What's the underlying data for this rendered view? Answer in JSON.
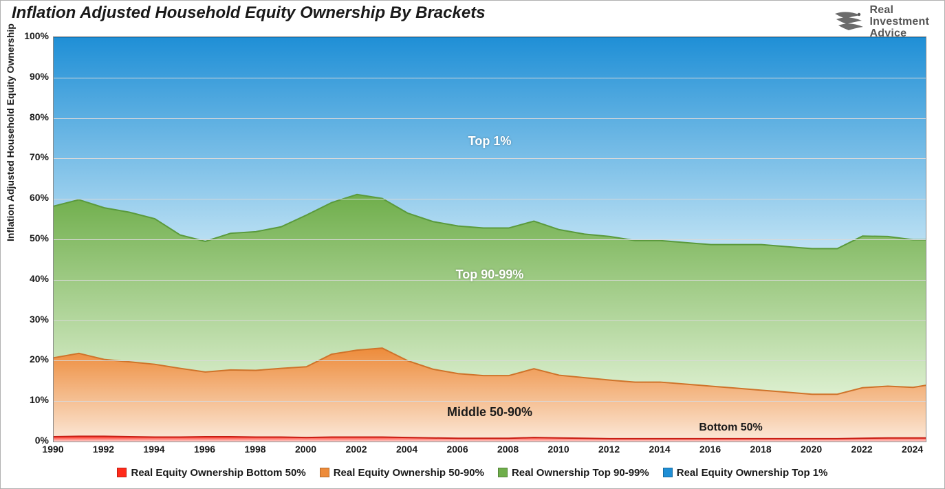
{
  "title": "Inflation Adjusted Household Equity Ownership By Brackets",
  "brand": {
    "line1": "Real",
    "line2": "Investment",
    "line3": "Advice"
  },
  "chart": {
    "type": "stacked-area-100",
    "ylabel": "Inflation Adjusted Household Equity Ownership",
    "ylim": [
      0,
      100
    ],
    "ytick_step": 10,
    "ytick_suffix": "%",
    "xlim": [
      1990,
      2024.5
    ],
    "xticks": [
      1990,
      1992,
      1994,
      1996,
      1998,
      2000,
      2002,
      2004,
      2006,
      2008,
      2010,
      2012,
      2014,
      2016,
      2018,
      2020,
      2022,
      2024
    ],
    "background_color": "#ffffff",
    "grid_color": "#d9d9d9",
    "border_color": "#888888",
    "series_order_bottom_to_top": [
      "bottom50",
      "mid50_90",
      "top90_99",
      "top1"
    ],
    "colors": {
      "bottom50_fill_top": "#ff2a1a",
      "bottom50_fill_bot": "#ffd6d2",
      "bottom50_line": "#c81e14",
      "mid_fill_top": "#ed8b3a",
      "mid_fill_bot": "#fbe6d5",
      "mid_line": "#cf732a",
      "top9099_fill_top": "#6fae4b",
      "top9099_fill_bot": "#dcefcf",
      "top9099_line": "#5a9a3c",
      "top1_fill_top": "#1f8fd6",
      "top1_fill_bot": "#bfe2f4",
      "top1_line": "#1678b8"
    },
    "region_labels": {
      "top1": "Top 1%",
      "top90_99": "Top 90-99%",
      "mid": "Middle 50-90%",
      "bottom": "Bottom 50%"
    },
    "legend": [
      {
        "swatch": "#ff2a1a",
        "label": "Real Equity Ownership Bottom 50%"
      },
      {
        "swatch": "#ed8b3a",
        "label": "Real Equity Ownership 50-90%"
      },
      {
        "swatch": "#6fae4b",
        "label": "Real Ownership Top 90-99%"
      },
      {
        "swatch": "#1f8fd6",
        "label": "Real Equity Ownership Top 1%"
      }
    ],
    "x": [
      1990,
      1991,
      1992,
      1993,
      1994,
      1995,
      1996,
      1997,
      1998,
      1999,
      2000,
      2001,
      2002,
      2003,
      2004,
      2005,
      2006,
      2007,
      2008,
      2009,
      2010,
      2011,
      2012,
      2013,
      2014,
      2015,
      2016,
      2017,
      2018,
      2019,
      2020,
      2021,
      2022,
      2023,
      2024,
      2024.5
    ],
    "bottom50": [
      1.2,
      1.3,
      1.3,
      1.2,
      1.1,
      1.1,
      1.2,
      1.2,
      1.1,
      1.1,
      1.0,
      1.1,
      1.1,
      1.1,
      1.0,
      0.9,
      0.8,
      0.8,
      0.8,
      1.0,
      0.9,
      0.8,
      0.7,
      0.7,
      0.7,
      0.7,
      0.7,
      0.7,
      0.7,
      0.7,
      0.7,
      0.7,
      0.8,
      0.9,
      0.9,
      0.9
    ],
    "mid50_90": [
      19.5,
      20.5,
      19.0,
      18.5,
      18.0,
      17.0,
      16.0,
      16.5,
      16.5,
      17.0,
      17.5,
      20.5,
      21.5,
      22.0,
      19.0,
      17.0,
      16.0,
      15.5,
      15.5,
      17.0,
      15.5,
      15.0,
      14.5,
      14.0,
      14.0,
      13.5,
      13.0,
      12.5,
      12.0,
      11.5,
      11.0,
      11.0,
      12.5,
      12.8,
      12.5,
      13.0
    ],
    "top90_99": [
      37.5,
      38.0,
      37.5,
      37.0,
      36.0,
      33.0,
      32.3,
      33.8,
      34.3,
      35.0,
      37.5,
      37.5,
      38.5,
      37.0,
      36.5,
      36.5,
      36.5,
      36.5,
      36.5,
      36.5,
      36.0,
      35.5,
      35.5,
      35.0,
      35.0,
      35.0,
      35.0,
      35.5,
      36.0,
      36.0,
      36.0,
      36.0,
      37.5,
      37.0,
      36.5,
      36.0
    ],
    "top1": [
      41.8,
      40.2,
      42.2,
      43.3,
      44.9,
      48.9,
      50.5,
      48.5,
      48.1,
      46.9,
      44.0,
      40.9,
      38.9,
      39.9,
      43.5,
      45.6,
      46.7,
      47.2,
      47.2,
      45.5,
      47.6,
      48.7,
      49.3,
      50.3,
      50.3,
      50.8,
      51.3,
      51.3,
      51.3,
      51.8,
      52.3,
      52.3,
      49.2,
      49.3,
      50.1,
      50.1
    ]
  }
}
